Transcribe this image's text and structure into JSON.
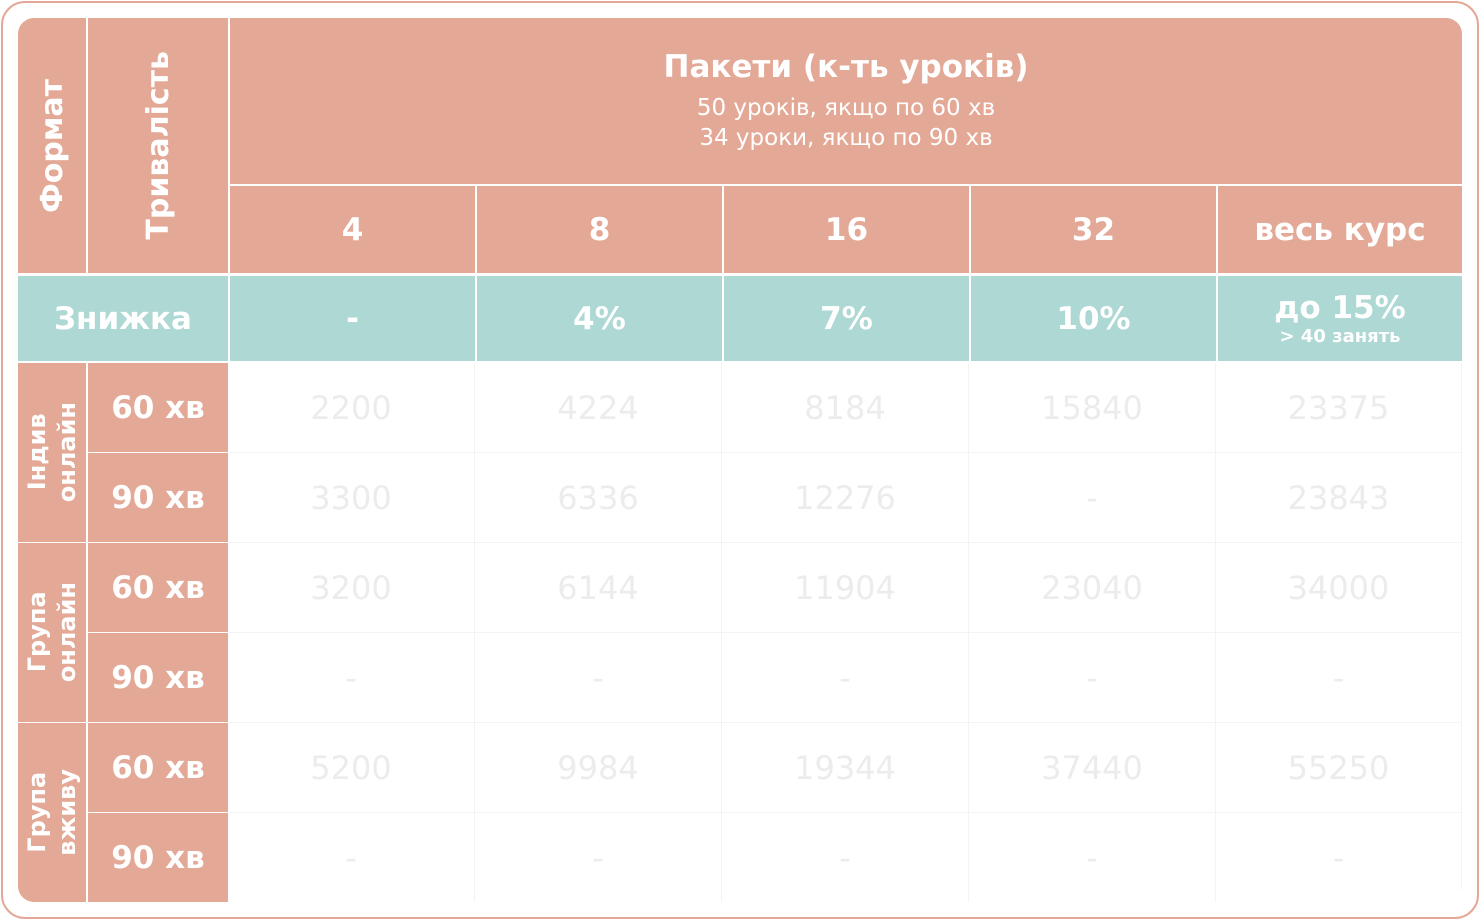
{
  "header": {
    "format": "Формат",
    "duration": "Тривалість",
    "packages_title": "Пакети (к-ть уроків)",
    "packages_note": [
      "50 уроків, якщо по 60 хв",
      "34 уроки, якщо по 90 хв"
    ],
    "packages": [
      "4",
      "8",
      "16",
      "32",
      "весь курс"
    ]
  },
  "discount": {
    "label": "Знижка",
    "values": [
      "-",
      "4%",
      "7%",
      "10%",
      "до 15%"
    ],
    "last_note": "> 40 занять"
  },
  "groups": [
    {
      "label": [
        "Індив",
        "онлайн"
      ],
      "rows": [
        {
          "duration": "60 хв",
          "prices": [
            "2200",
            "4224",
            "8184",
            "15840",
            "23375"
          ]
        },
        {
          "duration": "90 хв",
          "prices": [
            "3300",
            "6336",
            "12276",
            "-",
            "23843"
          ]
        }
      ]
    },
    {
      "label": [
        "Група",
        "онлайн"
      ],
      "rows": [
        {
          "duration": "60 хв",
          "prices": [
            "3200",
            "6144",
            "11904",
            "23040",
            "34000"
          ]
        },
        {
          "duration": "90 хв",
          "prices": [
            "-",
            "-",
            "-",
            "-",
            "-"
          ]
        }
      ]
    },
    {
      "label": [
        "Група",
        "вживу"
      ],
      "rows": [
        {
          "duration": "60 хв",
          "prices": [
            "5200",
            "9984",
            "19344",
            "37440",
            "55250"
          ]
        },
        {
          "duration": "90 хв",
          "prices": [
            "-",
            "-",
            "-",
            "-",
            "-"
          ]
        }
      ]
    }
  ]
}
